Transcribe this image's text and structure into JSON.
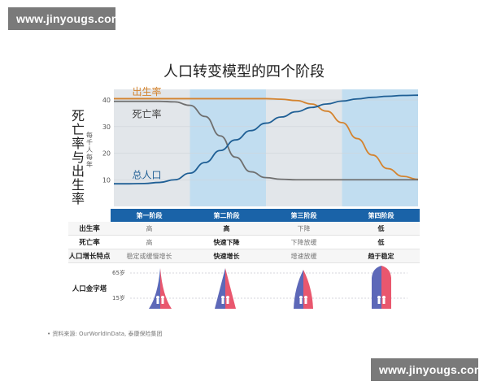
{
  "watermark_top": "www.jinyougs.com",
  "watermark_bottom": "www.jinyougs.com",
  "title": "人口转变模型的四个阶段",
  "ylabel": "死亡率与出生率",
  "yunit": "每千人每年",
  "colors": {
    "birth_rate": "#d4832e",
    "death_rate": "#6f6f6f",
    "population": "#1f5f95",
    "grey_band": "#e2e6ea",
    "blue_band": "#c1ddf0",
    "header": "#1a63a8",
    "pyramid_blue": "#5d68b8",
    "pyramid_red": "#e9576e"
  },
  "chart_data": {
    "type": "line",
    "title": "人口转变模型的四个阶段",
    "ylabel": "死亡率与出生率",
    "ylim": [
      0,
      44
    ],
    "yticks": [
      "10",
      "20",
      "30",
      "40"
    ],
    "grid": true,
    "x": [
      0,
      5,
      10,
      15,
      20,
      25,
      30,
      35,
      40,
      45,
      50,
      55,
      60,
      65,
      70,
      75,
      80,
      85,
      90,
      95,
      100
    ],
    "stages": [
      "第一阶段",
      "第二阶段",
      "第三阶段",
      "第四阶段"
    ],
    "series": [
      {
        "name": "出生率",
        "values": [
          40.5,
          40.5,
          40.5,
          40.5,
          40.5,
          40.5,
          40.5,
          40.5,
          40.5,
          40.5,
          40.5,
          40.3,
          39.8,
          38.5,
          35.8,
          31.5,
          25.5,
          19.3,
          14.2,
          11.3,
          10.2
        ]
      },
      {
        "name": "死亡率",
        "values": [
          39.5,
          39.5,
          39.5,
          39.5,
          39.3,
          38.0,
          33.8,
          26.5,
          18.5,
          13.0,
          10.8,
          10.2,
          10.0,
          10.0,
          10.0,
          10.0,
          10.0,
          10.0,
          10.0,
          10.0,
          10.0
        ]
      },
      {
        "name": "总人口",
        "values": [
          8.5,
          8.5,
          8.6,
          9.0,
          10.0,
          12.5,
          16.5,
          21.0,
          25.0,
          28.5,
          31.3,
          33.6,
          35.6,
          37.2,
          38.5,
          39.6,
          40.4,
          41.0,
          41.4,
          41.7,
          41.8
        ]
      }
    ]
  },
  "table": {
    "headers": [
      "第一阶段",
      "第二阶段",
      "第三阶段",
      "第四阶段"
    ],
    "rows": [
      {
        "label": "出生率",
        "cells": [
          "高",
          "高",
          "下降",
          "低"
        ]
      },
      {
        "label": "死亡率",
        "cells": [
          "高",
          "快速下降",
          "下降放缓",
          "低"
        ]
      },
      {
        "label": "人口增长特点",
        "cells": [
          "稳定或缓慢增长",
          "快速增长",
          "增速放缓",
          "趋于稳定"
        ]
      }
    ],
    "pyramid_label": "人口金字塔",
    "age_high": "65岁",
    "age_low": "15岁"
  },
  "source": "资料来源: OurWorldInData, 泰康保险集团"
}
